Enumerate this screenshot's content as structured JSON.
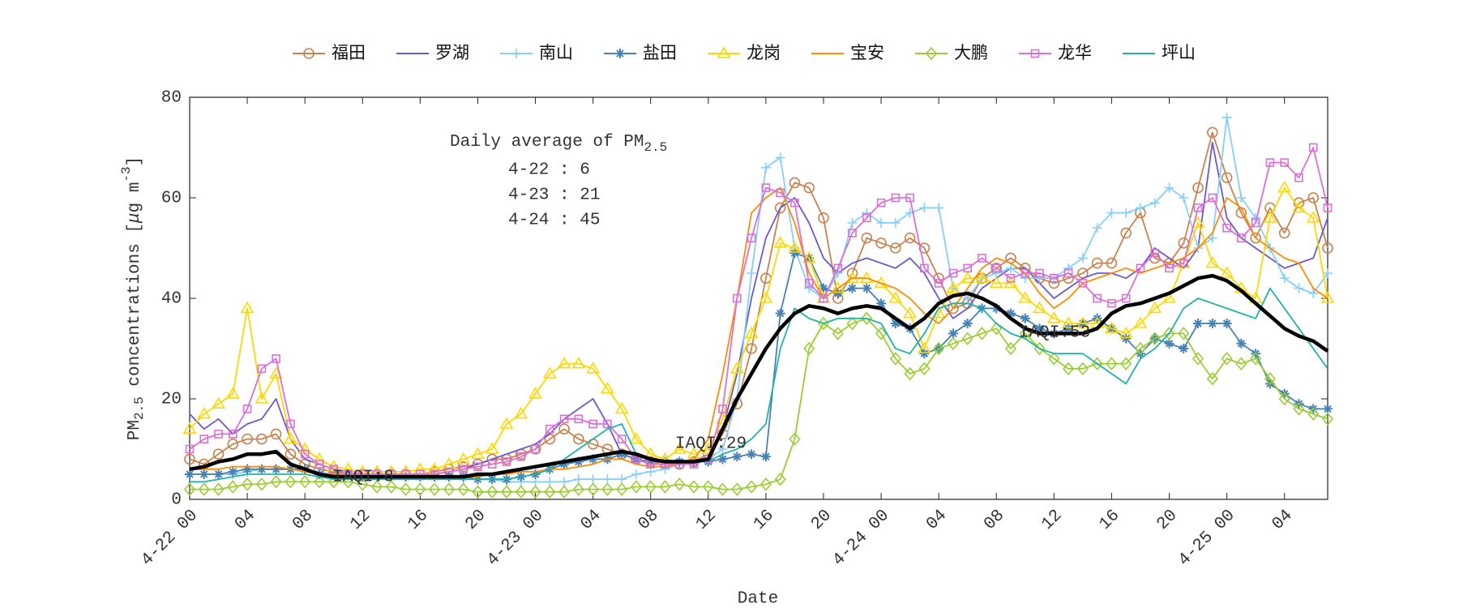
{
  "chart_data": {
    "type": "line",
    "xlabel": "Date",
    "ylabel": [
      "PM",
      "2.5",
      " concentrations [",
      "μ",
      "g m",
      "-3",
      "]"
    ],
    "categories": [
      "4-22 00",
      null,
      null,
      null,
      "04",
      null,
      null,
      null,
      "08",
      null,
      null,
      null,
      "12",
      null,
      null,
      null,
      "16",
      null,
      null,
      null,
      "20",
      null,
      null,
      null,
      "4-23 00",
      null,
      null,
      null,
      "04",
      null,
      null,
      null,
      "08",
      null,
      null,
      null,
      "12",
      null,
      null,
      null,
      "16",
      null,
      null,
      null,
      "20",
      null,
      null,
      null,
      "4-24 00",
      null,
      null,
      null,
      "04",
      null,
      null,
      null,
      "08",
      null,
      null,
      null,
      "12",
      null,
      null,
      null,
      "16",
      null,
      null,
      null,
      "20",
      null,
      null,
      null,
      "4-25 00",
      null,
      null,
      null,
      "04",
      null,
      null,
      null
    ],
    "ylim": [
      0,
      80
    ],
    "yticks": [
      0,
      20,
      40,
      60,
      80
    ],
    "grid": false,
    "legend": "top",
    "series": [
      {
        "name": "福田",
        "color": "#c8824e",
        "marker": "o",
        "values": [
          8,
          7,
          9,
          11,
          12,
          12,
          13,
          9,
          7,
          6,
          5.5,
          5,
          5,
          5,
          5,
          5,
          5,
          5.5,
          6,
          6.5,
          7,
          8,
          8,
          9,
          10,
          12,
          14,
          12,
          11,
          10,
          9,
          8,
          7.5,
          7,
          7,
          7.5,
          9,
          13,
          19,
          30,
          44,
          58,
          63,
          62,
          56,
          40,
          45,
          52,
          51,
          50,
          52,
          50,
          44,
          38,
          39,
          44,
          46,
          48,
          46,
          44,
          43,
          44,
          45,
          47,
          47,
          53,
          57,
          48,
          47,
          51,
          62,
          73,
          64,
          57,
          52,
          58,
          53,
          59,
          60,
          50
        ]
      },
      {
        "name": "罗湖",
        "color": "#6a5acd",
        "marker": "none",
        "values": [
          17,
          14,
          16,
          13,
          15,
          16,
          20,
          12,
          8,
          7,
          6,
          5.5,
          5,
          5,
          5,
          5,
          5,
          5,
          5.5,
          6,
          7,
          8,
          9,
          10,
          11,
          13,
          16,
          18,
          20,
          15,
          9,
          8,
          7,
          7,
          7,
          7,
          8,
          14,
          25,
          40,
          52,
          58,
          60,
          55,
          48,
          45,
          47,
          48,
          47,
          46,
          48,
          45,
          40,
          36,
          38,
          42,
          44,
          46,
          46,
          43,
          40,
          42,
          44,
          45,
          45,
          44,
          46,
          50,
          48,
          46,
          50,
          71,
          56,
          52,
          50,
          48,
          46,
          47,
          48,
          56
        ]
      },
      {
        "name": "南山",
        "color": "#87cefa",
        "marker": "+",
        "values": [
          5,
          5,
          5,
          5,
          5.5,
          6,
          6,
          6,
          6,
          5.5,
          5,
          5,
          5,
          5,
          5,
          4.5,
          4.5,
          4.5,
          4.5,
          4,
          4,
          4,
          3.5,
          3.5,
          3.5,
          3.5,
          3.5,
          4,
          4,
          4,
          4,
          5,
          5.5,
          6,
          7,
          7.5,
          8,
          10,
          20,
          45,
          66,
          68,
          50,
          42,
          40,
          45,
          55,
          57,
          55,
          55,
          57,
          58,
          58,
          42,
          40,
          44,
          45,
          46,
          44,
          44,
          44,
          46,
          48,
          54,
          57,
          57,
          58,
          59,
          62,
          60,
          50,
          52,
          76,
          60,
          56,
          50,
          44,
          42,
          41,
          45
        ]
      },
      {
        "name": "盐田",
        "color": "#4682b4",
        "marker": "*",
        "values": [
          5,
          5,
          5,
          5.5,
          6,
          6,
          6,
          6,
          6,
          5,
          5,
          5,
          4.5,
          4.5,
          4.5,
          4.5,
          4.5,
          4.5,
          4.5,
          4.5,
          4,
          4,
          4,
          4.5,
          5,
          6,
          7,
          7.5,
          8,
          8,
          9,
          8,
          7.5,
          7.5,
          7.5,
          7.5,
          7.5,
          8,
          8.5,
          9,
          8.5,
          37,
          49,
          48,
          42,
          41,
          42,
          42,
          39,
          35,
          34,
          29,
          30,
          33,
          35,
          38,
          38,
          37,
          36,
          34,
          33,
          34,
          35,
          36,
          34,
          32,
          29,
          32,
          31,
          30,
          35,
          35,
          35,
          31,
          29,
          23,
          21,
          19,
          18,
          18
        ]
      },
      {
        "name": "龙岗",
        "color": "#ffd700",
        "marker": "^",
        "values": [
          14,
          17,
          19,
          21,
          38,
          20,
          25,
          12,
          10,
          8,
          6.5,
          6,
          5.5,
          5.5,
          5.5,
          5.5,
          6,
          6,
          7,
          8,
          9,
          10,
          15,
          17,
          21,
          25,
          27,
          27,
          26,
          22,
          18,
          12,
          9,
          8,
          10,
          9,
          10,
          16,
          26,
          33,
          40,
          51,
          50,
          48,
          40,
          42,
          44,
          44,
          43,
          40,
          37,
          30,
          37,
          42,
          44,
          44,
          43,
          43,
          40,
          38,
          36,
          35,
          35,
          35,
          34,
          33,
          35,
          38,
          40,
          47,
          55,
          47,
          45,
          42,
          40,
          56,
          62,
          58,
          56,
          40
        ]
      },
      {
        "name": "宝安",
        "color": "#ff8c00",
        "marker": "none",
        "values": [
          6,
          6,
          6,
          6.5,
          6.5,
          6.5,
          6.5,
          6,
          5.5,
          5,
          5,
          5,
          5,
          4.5,
          4.5,
          4.5,
          4.5,
          4.5,
          4.5,
          4.5,
          4.5,
          5,
          5,
          5.5,
          5.5,
          6,
          6,
          6.5,
          7,
          8,
          8,
          7,
          6.5,
          6.5,
          7,
          8,
          12,
          25,
          40,
          57,
          60,
          62,
          55,
          45,
          40,
          42,
          44,
          44,
          43,
          42,
          40,
          37,
          35,
          38,
          42,
          46,
          48,
          47,
          45,
          41,
          38,
          40,
          43,
          44,
          45,
          46,
          45,
          46,
          47,
          48,
          50,
          53,
          60,
          58,
          52,
          50,
          48,
          47,
          42,
          40
        ]
      },
      {
        "name": "大鹏",
        "color": "#9acd32",
        "marker": "d",
        "values": [
          2,
          2,
          2,
          2.5,
          3,
          3,
          3.5,
          3.5,
          3.5,
          3.5,
          3.5,
          3.5,
          3,
          2.5,
          2.5,
          2,
          2,
          2,
          2,
          2,
          1.5,
          1.5,
          1.5,
          1.5,
          1.5,
          1.5,
          1.5,
          2,
          2,
          2,
          2,
          2.5,
          2.5,
          2.5,
          3,
          2.5,
          2.5,
          2,
          2,
          2.5,
          3,
          4,
          12,
          30,
          35,
          33,
          35,
          36,
          33,
          28,
          25,
          26,
          30,
          31,
          32,
          33,
          34,
          30,
          33,
          30,
          28,
          26,
          26,
          27,
          27,
          27,
          30,
          32,
          33,
          33,
          28,
          24,
          28,
          27,
          28,
          24,
          20,
          18,
          17,
          16
        ]
      },
      {
        "name": "龙华",
        "color": "#da70d6",
        "marker": "s",
        "values": [
          10,
          12,
          13,
          13,
          18,
          26,
          28,
          15,
          9,
          7,
          6,
          5,
          5,
          5,
          5,
          5,
          5,
          5,
          5.5,
          6,
          6.5,
          7,
          7.5,
          8.5,
          10,
          14,
          16,
          16,
          15,
          15,
          12,
          8,
          7,
          7,
          7,
          7,
          8,
          18,
          40,
          52,
          62,
          61,
          59,
          43,
          40,
          46,
          53,
          56,
          59,
          60,
          60,
          46,
          43,
          45,
          46,
          48,
          46,
          44,
          45,
          45,
          44,
          45,
          43,
          40,
          39,
          40,
          46,
          49,
          46,
          47,
          58,
          60,
          54,
          52,
          55,
          67,
          67,
          64,
          70,
          58
        ]
      },
      {
        "name": "坪山",
        "color": "#20b2aa",
        "marker": "none",
        "values": [
          3.5,
          3.5,
          4,
          4.5,
          5,
          5,
          5,
          5,
          5,
          4.5,
          4,
          4,
          4,
          4,
          4,
          4,
          4,
          4,
          4,
          4,
          4,
          4,
          4,
          4.5,
          5,
          6,
          8,
          10,
          12,
          14,
          15,
          9,
          8,
          7.5,
          7.5,
          7.5,
          7.5,
          9,
          10,
          12,
          15,
          30,
          38,
          36,
          35,
          36,
          36,
          36,
          35,
          30,
          29,
          33,
          38,
          39,
          39,
          38,
          35,
          33,
          32,
          30,
          29,
          29,
          29,
          27,
          25,
          23,
          28,
          30,
          33,
          38,
          40,
          39,
          38,
          37,
          36,
          42,
          38,
          34,
          30,
          26
        ]
      }
    ],
    "mean_line": {
      "color": "#000000",
      "values": [
        6,
        6.5,
        7.5,
        8,
        9,
        9,
        9.5,
        7,
        6,
        5,
        4.5,
        4.5,
        4.5,
        4.5,
        4.5,
        4.5,
        4.5,
        4.5,
        4.5,
        4.5,
        5,
        5,
        5.5,
        6,
        6.5,
        7,
        7.5,
        8,
        8.5,
        9,
        9.5,
        9,
        8,
        7.5,
        7.5,
        7.5,
        8,
        14,
        20,
        25,
        30,
        34,
        37,
        38.5,
        38,
        37,
        38,
        38.5,
        38,
        36,
        34,
        36,
        39,
        40.5,
        41,
        40,
        38.5,
        36,
        34,
        33,
        33,
        33,
        33,
        34,
        37,
        38.5,
        39,
        40,
        41,
        42.5,
        44,
        44.5,
        43.5,
        41.5,
        39,
        36.5,
        34,
        32.5,
        31.5,
        29.5
      ]
    },
    "annotations": [
      "IAQI:8",
      "IAQI:29",
      "IAQI:53"
    ],
    "daily_average": {
      "title": "Daily average of PM",
      "subscript": "2.5",
      "lines": [
        "4-22 : 6",
        "4-23 : 21",
        "4-24 : 45"
      ]
    }
  }
}
